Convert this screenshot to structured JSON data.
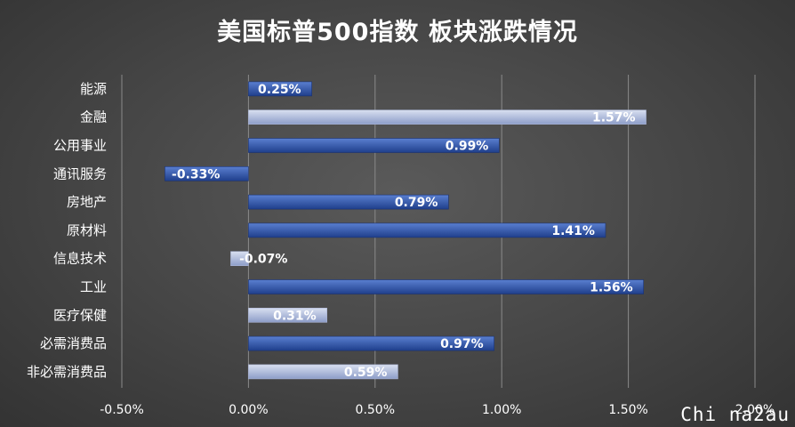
{
  "chart_data": {
    "type": "bar",
    "orientation": "horizontal",
    "title": "美国标普500指数 板块涨跌情况",
    "categories": [
      "能源",
      "金融",
      "公用事业",
      "通讯服务",
      "房地产",
      "原材料",
      "信息技术",
      "工业",
      "医疗保健",
      "必需消费品",
      "非必需消费品"
    ],
    "values": [
      0.25,
      1.57,
      0.99,
      -0.33,
      0.79,
      1.41,
      -0.07,
      1.56,
      0.31,
      0.97,
      0.59
    ],
    "data_labels": [
      "0.25%",
      "1.57%",
      "0.99%",
      "-0.33%",
      "0.79%",
      "1.41%",
      "-0.07%",
      "1.56%",
      "0.31%",
      "0.97%",
      "0.59%"
    ],
    "bar_styles": [
      "dark",
      "light",
      "dark",
      "dark",
      "dark",
      "dark",
      "light",
      "dark",
      "light",
      "dark",
      "light"
    ],
    "xlim": [
      -0.5,
      2.0
    ],
    "x_ticks": [
      -0.5,
      0.0,
      0.5,
      1.0,
      1.5,
      2.0
    ],
    "x_tick_labels": [
      "-0.50%",
      "0.00%",
      "0.50%",
      "1.00%",
      "1.50%",
      "2.00%"
    ],
    "grid": "vertical",
    "legend": "none",
    "colors": {
      "dark_bar_top": "#5a7fd0",
      "dark_bar_bottom": "#1f3f8c",
      "light_bar_top": "#d8dff0",
      "light_bar_bottom": "#8d9dc8",
      "gridline": "#8a8a8a",
      "text": "#ffffff"
    }
  },
  "watermark": "Chi na2au"
}
